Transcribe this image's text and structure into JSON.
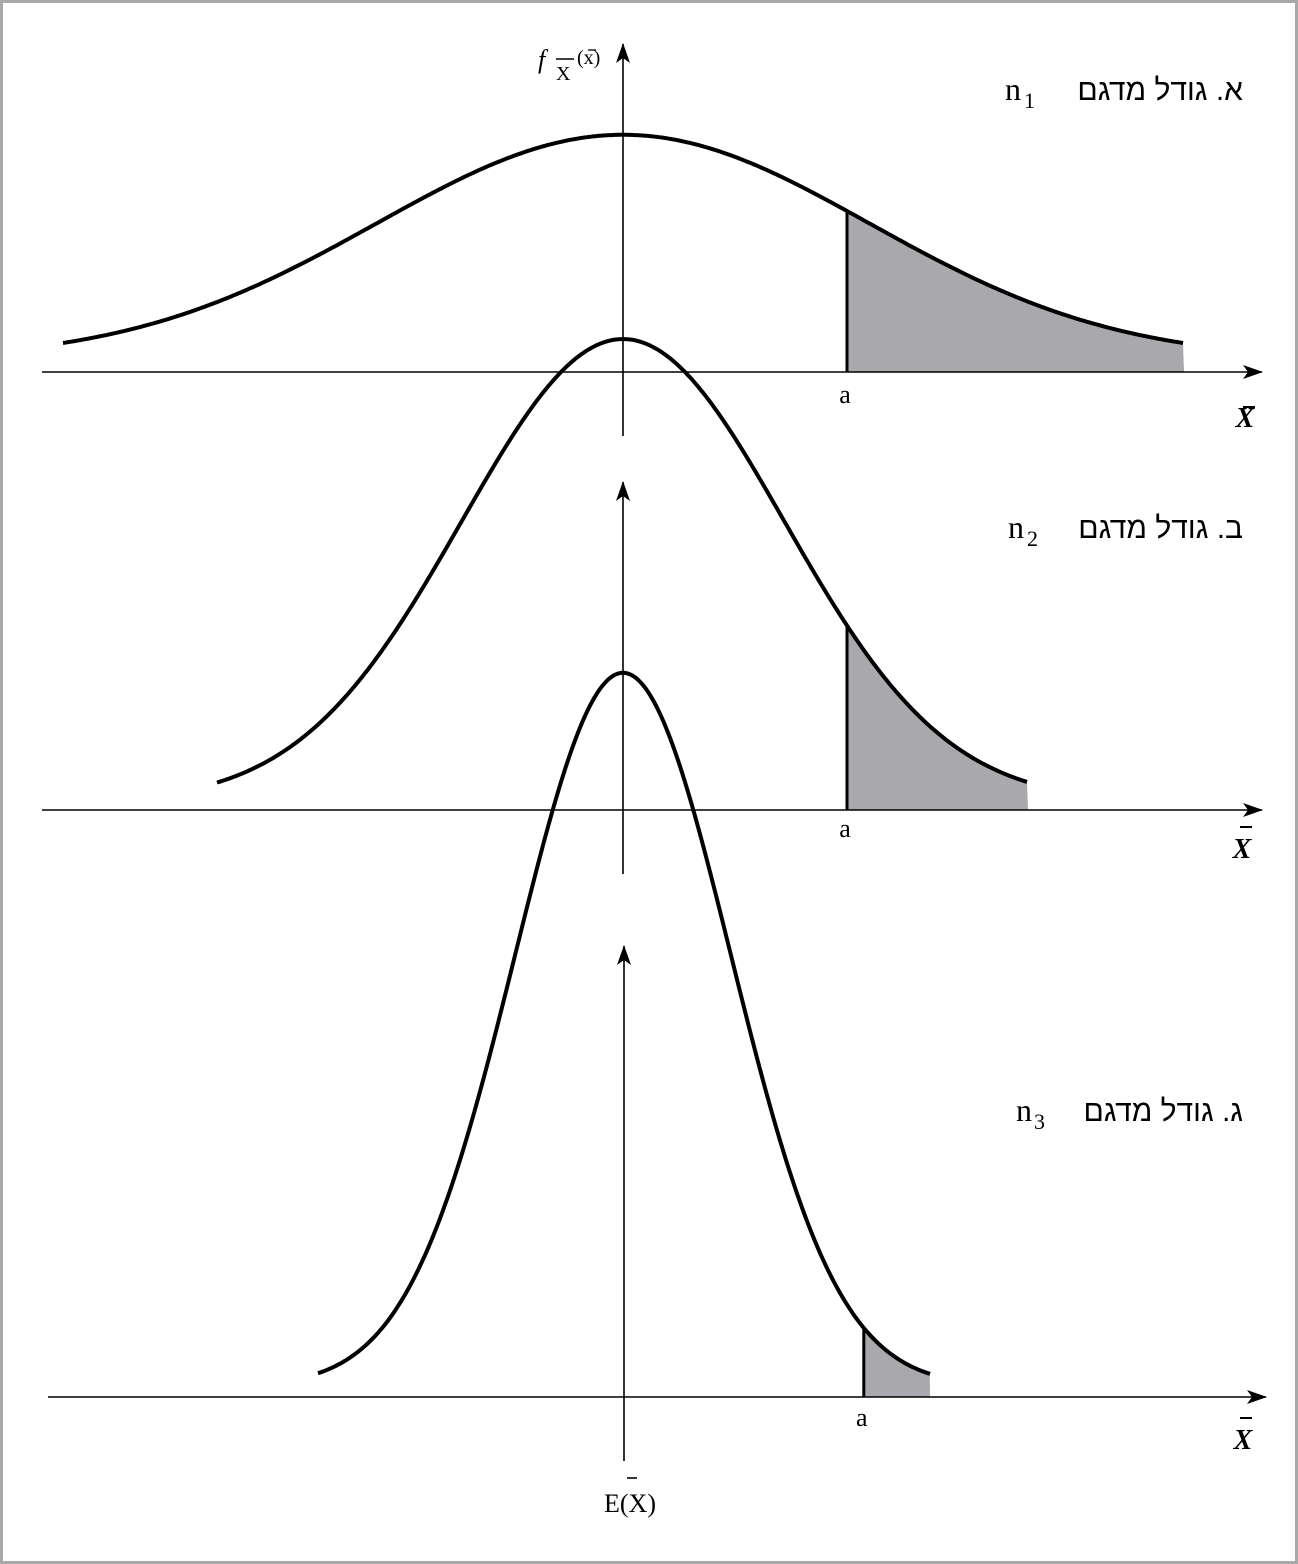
{
  "colors": {
    "curve": "#000000",
    "shade": "#a9a9ad",
    "frame": "#a8a8a8"
  },
  "y_axis_label": {
    "f": "f",
    "subscript": "X",
    "arg": "(x)"
  },
  "bottom_label": "E(X)",
  "panels": [
    {
      "title_hebrew": "א. גודל מדגם",
      "title_n": "n",
      "title_sub": "1",
      "a_label": "a",
      "x_axis_label": "X",
      "peak_height": 0.18,
      "spread": 0.55,
      "a_position": 0.4
    },
    {
      "title_hebrew": "ב. גודל מדגם",
      "title_n": "n",
      "title_sub": "2",
      "a_label": "a",
      "x_axis_label": "X",
      "peak_height": 0.37,
      "spread": 0.36,
      "a_position": 0.4
    },
    {
      "title_hebrew": "ג. גודל מדגם",
      "title_n": "n",
      "title_sub": "3",
      "a_label": "a",
      "x_axis_label": "X",
      "peak_height": 0.57,
      "spread": 0.24,
      "a_position": 0.43
    }
  ]
}
